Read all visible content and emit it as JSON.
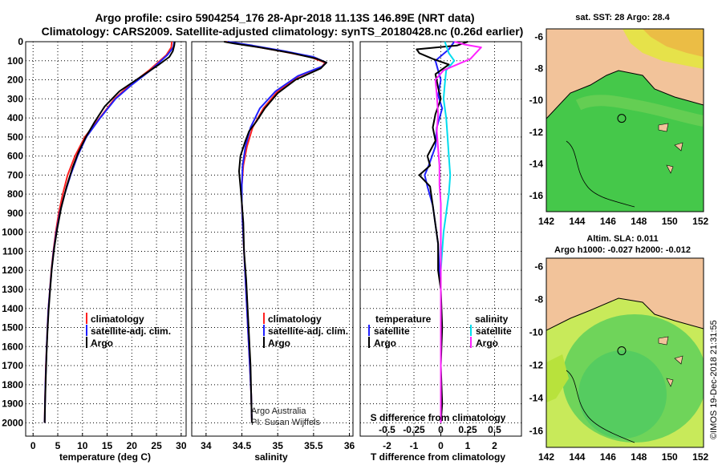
{
  "header": {
    "line1": "Argo profile: csiro 5904254_176 28-Apr-2018 11.13S 146.89E (NRT data)",
    "line2": "Climatology: CARS2009. Satellite-adjusted climatology: synTS_20180428.nc (0.26d earlier)"
  },
  "colors": {
    "climatology": "#ff2020",
    "satellite": "#2020ff",
    "argo": "#000000",
    "sat_salinity": "#00ddee",
    "argo_salinity": "#ff22ff"
  },
  "chart_data": [
    {
      "type": "line",
      "xlabel": "temperature (deg C)",
      "ylabel": "",
      "xlim": [
        -1.5,
        31
      ],
      "ylim": [
        2070,
        0
      ],
      "xticks": [
        0,
        5,
        10,
        15,
        20,
        25,
        30
      ],
      "yticks": [
        0,
        100,
        200,
        300,
        400,
        500,
        600,
        700,
        800,
        900,
        1000,
        1100,
        1200,
        1300,
        1400,
        1500,
        1600,
        1700,
        1800,
        1900,
        2000
      ],
      "legend": [
        "climatology",
        "satellite-adj. clim.",
        "Argo"
      ],
      "series": [
        {
          "name": "climatology",
          "points": [
            [
              28.1,
              0
            ],
            [
              28.0,
              30
            ],
            [
              27.0,
              70
            ],
            [
              23.5,
              150
            ],
            [
              19.5,
              230
            ],
            [
              16.5,
              300
            ],
            [
              13.5,
              400
            ],
            [
              10.5,
              500
            ],
            [
              8.5,
              600
            ],
            [
              7.0,
              700
            ],
            [
              6.0,
              800
            ],
            [
              5.2,
              900
            ],
            [
              4.6,
              1000
            ],
            [
              4.1,
              1100
            ],
            [
              3.7,
              1200
            ],
            [
              3.4,
              1300
            ],
            [
              3.1,
              1400
            ],
            [
              2.9,
              1500
            ],
            [
              2.75,
              1600
            ],
            [
              2.6,
              1700
            ],
            [
              2.5,
              1800
            ],
            [
              2.4,
              1900
            ],
            [
              2.35,
              2000
            ]
          ]
        },
        {
          "name": "satellite-adj. clim.",
          "points": [
            [
              28.6,
              0
            ],
            [
              28.4,
              30
            ],
            [
              27.2,
              70
            ],
            [
              23.8,
              150
            ],
            [
              19.8,
              230
            ],
            [
              16.7,
              300
            ],
            [
              13.6,
              400
            ],
            [
              10.8,
              500
            ],
            [
              9.0,
              600
            ],
            [
              7.6,
              700
            ],
            [
              6.4,
              800
            ],
            [
              5.4,
              900
            ],
            [
              4.7,
              1000
            ],
            [
              4.15,
              1100
            ],
            [
              3.75,
              1200
            ],
            [
              3.42,
              1300
            ],
            [
              3.12,
              1400
            ],
            [
              2.92,
              1500
            ],
            [
              2.76,
              1600
            ],
            [
              2.62,
              1700
            ],
            [
              2.5,
              1800
            ],
            [
              2.42,
              1900
            ],
            [
              2.35,
              2000
            ]
          ]
        },
        {
          "name": "Argo",
          "points": [
            [
              28.7,
              0
            ],
            [
              28.6,
              20
            ],
            [
              28.3,
              50
            ],
            [
              27.6,
              80
            ],
            [
              25.5,
              120
            ],
            [
              21.5,
              190
            ],
            [
              17.5,
              260
            ],
            [
              14.5,
              340
            ],
            [
              12.5,
              420
            ],
            [
              10.7,
              500
            ],
            [
              9.2,
              580
            ],
            [
              8.0,
              660
            ],
            [
              6.8,
              760
            ],
            [
              5.7,
              870
            ],
            [
              4.9,
              980
            ],
            [
              4.3,
              1080
            ],
            [
              3.8,
              1190
            ],
            [
              3.45,
              1300
            ],
            [
              3.15,
              1410
            ],
            [
              2.92,
              1520
            ],
            [
              2.72,
              1640
            ],
            [
              2.58,
              1760
            ],
            [
              2.45,
              1880
            ],
            [
              2.35,
              2000
            ]
          ]
        }
      ]
    },
    {
      "type": "line",
      "xlabel": "salinity",
      "ylabel": "",
      "xlim": [
        33.8,
        36.05
      ],
      "ylim": [
        2070,
        0
      ],
      "xticks": [
        34,
        34.5,
        35,
        35.5,
        36
      ],
      "legend": [
        "climatology",
        "satellite-adj. clim.",
        "Argo"
      ],
      "annotations": [
        "Argo Australia",
        "PI: Susan Wijffels"
      ],
      "series": [
        {
          "name": "climatology",
          "points": [
            [
              34.27,
              0
            ],
            [
              34.6,
              20
            ],
            [
              35.05,
              50
            ],
            [
              35.45,
              80
            ],
            [
              35.66,
              110
            ],
            [
              35.62,
              130
            ],
            [
              35.3,
              180
            ],
            [
              35.0,
              260
            ],
            [
              34.8,
              350
            ],
            [
              34.65,
              450
            ],
            [
              34.57,
              550
            ],
            [
              34.52,
              650
            ],
            [
              34.5,
              750
            ],
            [
              34.5,
              850
            ],
            [
              34.51,
              950
            ],
            [
              34.53,
              1100
            ],
            [
              34.55,
              1250
            ],
            [
              34.57,
              1400
            ],
            [
              34.59,
              1550
            ],
            [
              34.61,
              1700
            ],
            [
              34.63,
              1850
            ],
            [
              34.64,
              2000
            ]
          ]
        },
        {
          "name": "satellite-adj. clim.",
          "points": [
            [
              34.3,
              0
            ],
            [
              34.65,
              20
            ],
            [
              35.1,
              50
            ],
            [
              35.5,
              80
            ],
            [
              35.68,
              110
            ],
            [
              35.62,
              130
            ],
            [
              35.28,
              180
            ],
            [
              34.97,
              260
            ],
            [
              34.75,
              350
            ],
            [
              34.62,
              450
            ],
            [
              34.55,
              550
            ],
            [
              34.51,
              650
            ],
            [
              34.5,
              750
            ],
            [
              34.5,
              850
            ],
            [
              34.51,
              950
            ],
            [
              34.53,
              1100
            ],
            [
              34.55,
              1250
            ],
            [
              34.57,
              1400
            ],
            [
              34.59,
              1550
            ],
            [
              34.61,
              1700
            ],
            [
              34.63,
              1850
            ],
            [
              34.64,
              2000
            ]
          ]
        },
        {
          "name": "Argo",
          "points": [
            [
              34.25,
              0
            ],
            [
              34.4,
              10
            ],
            [
              34.75,
              30
            ],
            [
              35.2,
              60
            ],
            [
              35.55,
              90
            ],
            [
              35.68,
              110
            ],
            [
              35.6,
              140
            ],
            [
              35.25,
              200
            ],
            [
              35.0,
              270
            ],
            [
              34.82,
              350
            ],
            [
              34.7,
              420
            ],
            [
              34.6,
              470
            ],
            [
              34.55,
              520
            ],
            [
              34.48,
              600
            ],
            [
              34.46,
              680
            ],
            [
              34.48,
              760
            ],
            [
              34.5,
              850
            ],
            [
              34.52,
              950
            ],
            [
              34.53,
              1100
            ],
            [
              34.56,
              1250
            ],
            [
              34.58,
              1400
            ],
            [
              34.6,
              1550
            ],
            [
              34.62,
              1700
            ],
            [
              34.63,
              1850
            ],
            [
              34.64,
              2000
            ]
          ]
        }
      ]
    },
    {
      "type": "line",
      "xlabel": "T difference from climatology",
      "xlabel2": "S difference from climatology",
      "xlim": [
        -3,
        3
      ],
      "ylim": [
        2070,
        0
      ],
      "xticks": [
        -2,
        -1,
        0,
        1,
        2
      ],
      "s_xticks": [
        "-0.5",
        "-0.25",
        "0",
        "0.25",
        "0.5"
      ],
      "legend_left": [
        "temperature",
        "satellite",
        "Argo"
      ],
      "legend_right": [
        "salinity",
        "satellite",
        "Argo"
      ],
      "series": [
        {
          "name": "temperature satellite",
          "points": [
            [
              0.5,
              0
            ],
            [
              0.3,
              40
            ],
            [
              -0.2,
              100
            ],
            [
              -0.1,
              150
            ],
            [
              0.0,
              200
            ],
            [
              -0.1,
              280
            ],
            [
              0.05,
              350
            ],
            [
              -0.15,
              450
            ],
            [
              -0.2,
              550
            ],
            [
              -0.45,
              650
            ],
            [
              -0.6,
              700
            ],
            [
              -0.5,
              760
            ],
            [
              -0.3,
              860
            ],
            [
              -0.2,
              960
            ],
            [
              -0.1,
              1060
            ],
            [
              -0.05,
              1200
            ],
            [
              0.0,
              1300
            ],
            [
              0.0,
              2000
            ]
          ]
        },
        {
          "name": "temperature Argo",
          "points": [
            [
              1.0,
              0
            ],
            [
              0.6,
              20
            ],
            [
              -0.9,
              40
            ],
            [
              -0.8,
              60
            ],
            [
              -0.3,
              90
            ],
            [
              0.3,
              120
            ],
            [
              -0.2,
              170
            ],
            [
              -0.1,
              240
            ],
            [
              0.0,
              300
            ],
            [
              -0.2,
              380
            ],
            [
              -0.3,
              450
            ],
            [
              -0.2,
              520
            ],
            [
              -0.5,
              600
            ],
            [
              -0.4,
              650
            ],
            [
              -0.8,
              700
            ],
            [
              -0.4,
              760
            ],
            [
              -0.3,
              860
            ],
            [
              -0.2,
              960
            ],
            [
              -0.1,
              1060
            ],
            [
              -0.1,
              1200
            ],
            [
              0.0,
              1300
            ],
            [
              0.05,
              1500
            ],
            [
              0.0,
              1700
            ],
            [
              0.05,
              1900
            ],
            [
              0.0,
              2000
            ]
          ]
        },
        {
          "name": "salinity satellite",
          "points": [
            [
              0.15,
              0
            ],
            [
              0.2,
              20
            ],
            [
              0.3,
              60
            ],
            [
              0.5,
              100
            ],
            [
              0.2,
              150
            ],
            [
              0.15,
              220
            ],
            [
              0.1,
              300
            ],
            [
              0.2,
              400
            ],
            [
              0.25,
              500
            ],
            [
              0.3,
              600
            ],
            [
              0.35,
              700
            ],
            [
              0.3,
              800
            ],
            [
              0.2,
              900
            ],
            [
              0.1,
              1000
            ],
            [
              0.05,
              1100
            ],
            [
              0.0,
              1200
            ],
            [
              0.0,
              1300
            ],
            [
              0.0,
              2000
            ]
          ]
        },
        {
          "name": "salinity Argo",
          "points": [
            [
              0.5,
              0
            ],
            [
              0.9,
              15
            ],
            [
              1.5,
              30
            ],
            [
              1.3,
              60
            ],
            [
              1.1,
              90
            ],
            [
              0.1,
              150
            ],
            [
              -0.2,
              200
            ],
            [
              -0.15,
              280
            ],
            [
              -0.1,
              380
            ],
            [
              -0.15,
              470
            ],
            [
              -0.1,
              560
            ],
            [
              -0.05,
              650
            ],
            [
              -0.05,
              750
            ],
            [
              0.0,
              850
            ],
            [
              0.0,
              950
            ],
            [
              0.0,
              1100
            ],
            [
              0.0,
              1300
            ],
            [
              0.0,
              2000
            ]
          ]
        }
      ]
    },
    {
      "type": "heatmap",
      "title": "sat. SST: 28  Argo: 28.4",
      "xlim": [
        142,
        152.2
      ],
      "ylim": [
        -17,
        -5.5
      ],
      "xticks": [
        142,
        144,
        146,
        148,
        150,
        152
      ],
      "yticks": [
        -6,
        -8,
        -10,
        -12,
        -14,
        -16
      ],
      "marker": [
        146.89,
        -11.13
      ]
    },
    {
      "type": "heatmap",
      "title": "Altim. SLA: 0.011",
      "subtitle": "Argo h1000: -0.027  h2000: -0.012",
      "xlim": [
        142,
        152.2
      ],
      "ylim": [
        -17,
        -5.5
      ],
      "xticks": [
        142,
        144,
        146,
        148,
        150,
        152
      ],
      "yticks": [
        -6,
        -8,
        -10,
        -12,
        -14,
        -16
      ],
      "marker": [
        146.89,
        -11.13
      ]
    }
  ],
  "footer": {
    "stamp": "©IMOS 19-Dec-2018 21:31:55"
  }
}
